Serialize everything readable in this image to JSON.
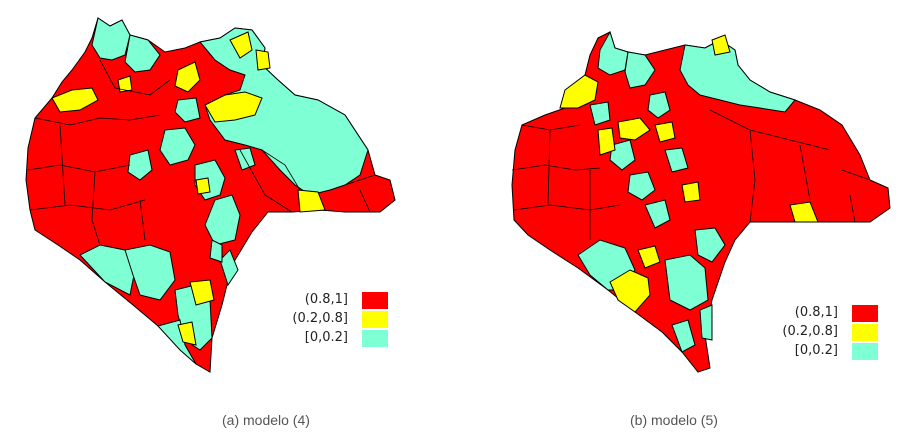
{
  "colors": {
    "high": "#ff0000",
    "mid": "#ffff00",
    "low": "#7fffd4",
    "border": "#000000"
  },
  "legend": {
    "items": [
      {
        "label": "(0.8,1]",
        "color": "#ff0000"
      },
      {
        "label": "(0.2,0.8]",
        "color": "#ffff00"
      },
      {
        "label": "[0,0.2]",
        "color": "#7fffd4"
      }
    ]
  },
  "panels": [
    {
      "caption": "(a) modelo (4)"
    },
    {
      "caption": "(b) modelo (5)"
    }
  ]
}
